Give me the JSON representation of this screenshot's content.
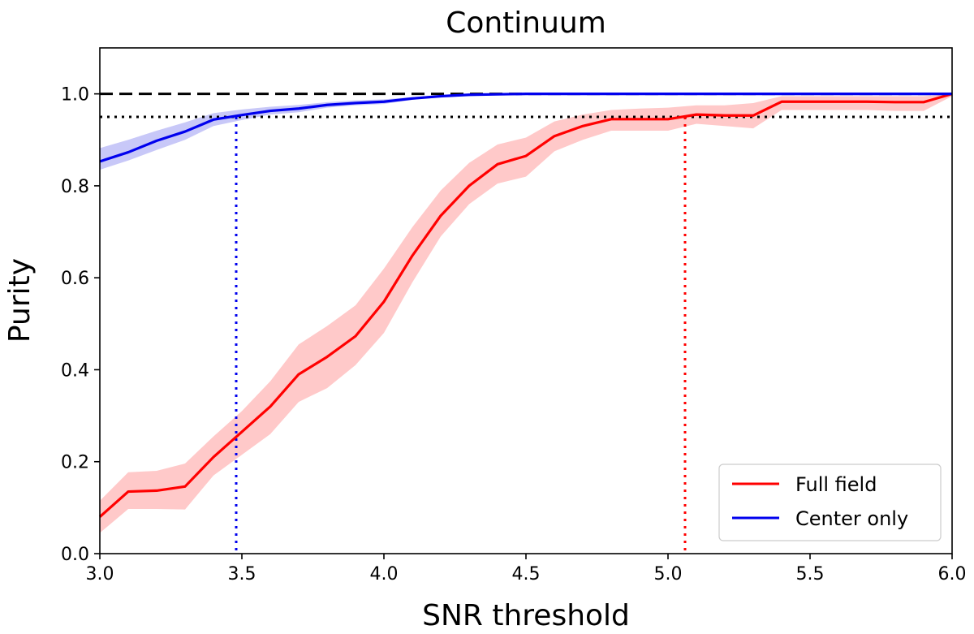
{
  "chart_data": {
    "type": "line",
    "title": "Continuum",
    "xlabel": "SNR threshold",
    "ylabel": "Purity",
    "xlim": [
      3.0,
      6.0
    ],
    "ylim": [
      0.0,
      1.1
    ],
    "xticks": [
      3.0,
      3.5,
      4.0,
      4.5,
      5.0,
      5.5,
      6.0
    ],
    "xtick_labels": [
      "3.0",
      "3.5",
      "4.0",
      "4.5",
      "5.0",
      "5.5",
      "6.0"
    ],
    "yticks": [
      0.0,
      0.2,
      0.4,
      0.6,
      0.8,
      1.0
    ],
    "ytick_labels": [
      "0.0",
      "0.2",
      "0.4",
      "0.6",
      "0.8",
      "1.0"
    ],
    "legend_position": "bottom-right",
    "series": [
      {
        "name": "Full field",
        "color": "#ff0000",
        "band_color": "#ffc9c9",
        "x": [
          3.0,
          3.1,
          3.2,
          3.3,
          3.4,
          3.5,
          3.6,
          3.7,
          3.8,
          3.9,
          4.0,
          4.1,
          4.2,
          4.3,
          4.4,
          4.5,
          4.6,
          4.7,
          4.8,
          4.9,
          5.0,
          5.1,
          5.2,
          5.3,
          5.4,
          5.5,
          5.6,
          5.7,
          5.8,
          5.9,
          6.0
        ],
        "y": [
          0.08,
          0.135,
          0.137,
          0.146,
          0.21,
          0.265,
          0.32,
          0.39,
          0.428,
          0.473,
          0.548,
          0.648,
          0.735,
          0.8,
          0.847,
          0.865,
          0.908,
          0.93,
          0.945,
          0.945,
          0.945,
          0.955,
          0.953,
          0.953,
          0.983,
          0.983,
          0.983,
          0.983,
          0.982,
          0.982,
          1.0
        ],
        "lower": [
          0.045,
          0.097,
          0.097,
          0.096,
          0.17,
          0.215,
          0.26,
          0.33,
          0.36,
          0.41,
          0.48,
          0.59,
          0.69,
          0.76,
          0.805,
          0.82,
          0.875,
          0.9,
          0.92,
          0.92,
          0.92,
          0.935,
          0.93,
          0.925,
          0.965,
          0.965,
          0.965,
          0.965,
          0.963,
          0.963,
          0.995
        ],
        "upper": [
          0.115,
          0.177,
          0.18,
          0.196,
          0.255,
          0.31,
          0.375,
          0.455,
          0.495,
          0.54,
          0.62,
          0.71,
          0.79,
          0.85,
          0.89,
          0.905,
          0.94,
          0.955,
          0.965,
          0.968,
          0.97,
          0.975,
          0.975,
          0.98,
          0.995,
          0.995,
          0.995,
          0.995,
          0.995,
          0.995,
          1.0
        ],
        "threshold_x": 5.06
      },
      {
        "name": "Center only",
        "color": "#0000ee",
        "band_color": "#c8c8f8",
        "x": [
          3.0,
          3.1,
          3.2,
          3.3,
          3.4,
          3.5,
          3.6,
          3.7,
          3.8,
          3.9,
          4.0,
          4.1,
          4.2,
          4.3,
          4.4,
          4.5,
          4.6,
          4.7,
          4.8,
          4.9,
          5.0,
          5.1,
          5.2,
          5.3,
          5.4,
          5.5,
          5.6,
          5.7,
          5.8,
          5.9,
          6.0
        ],
        "y": [
          0.853,
          0.873,
          0.898,
          0.918,
          0.944,
          0.954,
          0.963,
          0.968,
          0.976,
          0.98,
          0.983,
          0.99,
          0.995,
          0.998,
          0.999,
          1.0,
          1.0,
          1.0,
          1.0,
          1.0,
          1.0,
          1.0,
          1.0,
          1.0,
          1.0,
          1.0,
          1.0,
          1.0,
          1.0,
          1.0,
          1.0
        ],
        "lower": [
          0.835,
          0.855,
          0.878,
          0.9,
          0.93,
          0.943,
          0.955,
          0.96,
          0.97,
          0.975,
          0.978,
          0.987,
          0.993,
          0.996,
          0.998,
          0.999,
          1.0,
          1.0,
          1.0,
          1.0,
          1.0,
          1.0,
          1.0,
          1.0,
          1.0,
          1.0,
          1.0,
          1.0,
          1.0,
          1.0,
          1.0
        ],
        "upper": [
          0.882,
          0.9,
          0.92,
          0.938,
          0.958,
          0.966,
          0.972,
          0.976,
          0.982,
          0.986,
          0.988,
          0.993,
          0.997,
          0.999,
          1.0,
          1.0,
          1.0,
          1.0,
          1.0,
          1.0,
          1.0,
          1.0,
          1.0,
          1.0,
          1.0,
          1.0,
          1.0,
          1.0,
          1.0,
          1.0,
          1.0
        ],
        "threshold_x": 3.48
      }
    ],
    "reference_lines": [
      {
        "name": "dashed-reference",
        "y": 1.0,
        "style": "dashed",
        "color": "#000000"
      },
      {
        "name": "dotted-reference",
        "y": 0.95,
        "style": "dotted",
        "color": "#000000"
      }
    ]
  }
}
